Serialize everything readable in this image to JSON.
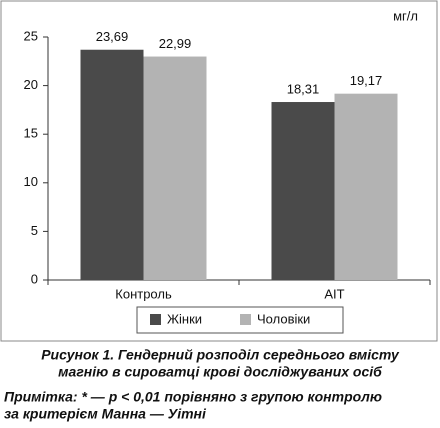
{
  "chart_data": {
    "type": "bar",
    "y_label": "мг/л",
    "categories": [
      "Контроль",
      "АІТ"
    ],
    "series": [
      {
        "name": "Жінки",
        "color": "#4a4a4a",
        "values": [
          23.69,
          18.31
        ],
        "value_labels": [
          "23,69",
          "18,31"
        ]
      },
      {
        "name": "Чоловіки",
        "color": "#b3b3b3",
        "values": [
          22.99,
          19.17
        ],
        "value_labels": [
          "22,99",
          "19,17"
        ]
      }
    ],
    "ylim": [
      0,
      25
    ],
    "yticks": [
      0,
      5,
      10,
      15,
      20,
      25
    ],
    "caption": [
      "Рисунок 1.  Гендерний розподіл середнього вмісту",
      "магнію в сироватці крові досліджуваних осіб"
    ],
    "note": [
      "Примітка: * — p < 0,01 порівняно з групою контролю",
      "за критерієм Манна — Уітні"
    ]
  }
}
